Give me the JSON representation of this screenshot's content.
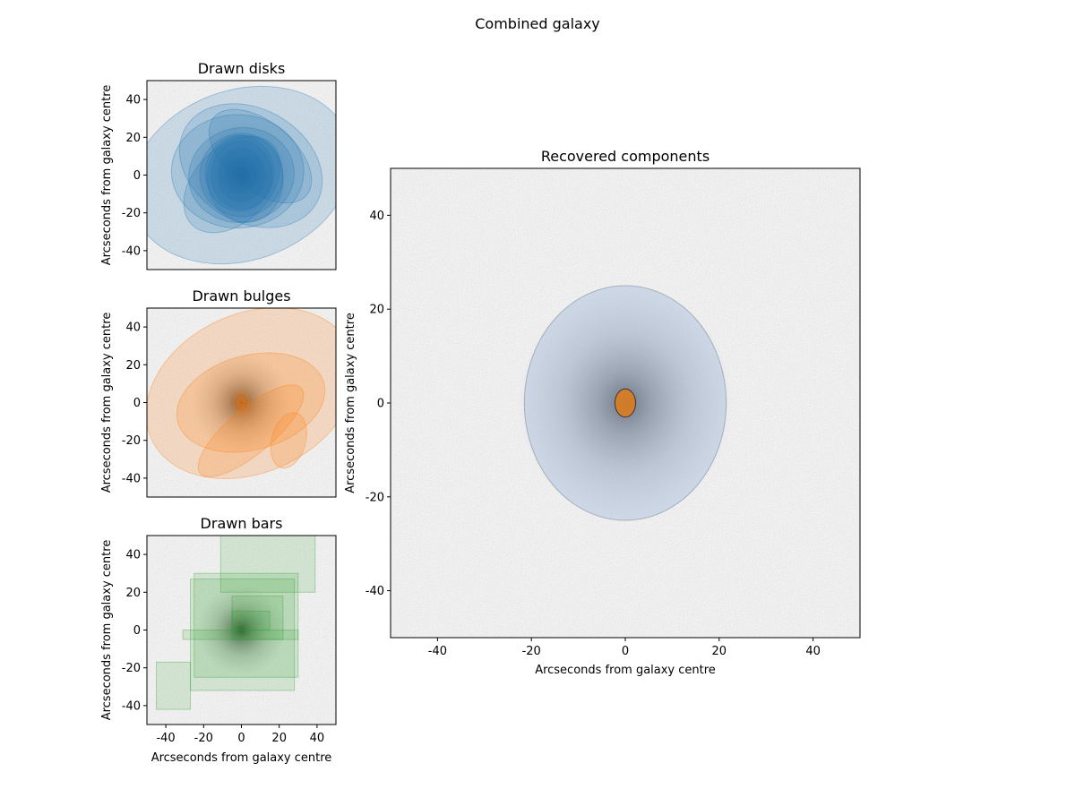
{
  "figure": {
    "suptitle": "Combined galaxy"
  },
  "colors": {
    "disk": "#1f77b4",
    "bulge": "#ff7f0e",
    "bar": "#2ca02c",
    "recovered_disk": "#a6bddb",
    "recovered_bulge": "#e07b1a",
    "background": "#d4d4d4"
  },
  "chart_data": [
    {
      "id": "drawn-disks",
      "type": "image-overlay",
      "title": "Drawn disks",
      "xlabel": "",
      "ylabel": "Arcseconds from galaxy centre",
      "xlim": [
        -50,
        50
      ],
      "ylim": [
        -50,
        50
      ],
      "xticks": [],
      "yticks": [
        40,
        20,
        0,
        -20,
        -40
      ],
      "ytick_labels": [
        "40",
        "20",
        "0",
        "-20",
        "-40"
      ],
      "shape": "ellipse",
      "components": [
        {
          "cx": 0,
          "cy": 0,
          "rx": 60,
          "ry": 45,
          "angle": 20
        },
        {
          "cx": 5,
          "cy": 5,
          "rx": 40,
          "ry": 30,
          "angle": -30
        },
        {
          "cx": -2,
          "cy": 2,
          "rx": 35,
          "ry": 30,
          "angle": 0
        },
        {
          "cx": 0,
          "cy": 0,
          "rx": 28,
          "ry": 25,
          "angle": 10
        },
        {
          "cx": 0,
          "cy": 0,
          "rx": 22,
          "ry": 22,
          "angle": 0
        },
        {
          "cx": 2,
          "cy": -2,
          "rx": 20,
          "ry": 23,
          "angle": 5
        },
        {
          "cx": -1,
          "cy": 1,
          "rx": 18,
          "ry": 20,
          "angle": 0
        },
        {
          "cx": 0,
          "cy": 0,
          "rx": 16,
          "ry": 18,
          "angle": 0
        },
        {
          "cx": 0,
          "cy": 0,
          "rx": 12,
          "ry": 14,
          "angle": 0
        },
        {
          "cx": 0,
          "cy": 0,
          "rx": 8,
          "ry": 9,
          "angle": 0
        },
        {
          "cx": 10,
          "cy": 10,
          "rx": 32,
          "ry": 18,
          "angle": -40
        },
        {
          "cx": -5,
          "cy": -5,
          "rx": 30,
          "ry": 20,
          "angle": 45
        }
      ]
    },
    {
      "id": "drawn-bulges",
      "type": "image-overlay",
      "title": "Drawn bulges",
      "xlabel": "",
      "ylabel": "Arcseconds from galaxy centre",
      "xlim": [
        -50,
        50
      ],
      "ylim": [
        -50,
        50
      ],
      "xticks": [],
      "yticks": [
        40,
        20,
        0,
        -20,
        -40
      ],
      "ytick_labels": [
        "40",
        "20",
        "0",
        "-20",
        "-40"
      ],
      "shape": "ellipse",
      "components": [
        {
          "cx": 5,
          "cy": 5,
          "rx": 58,
          "ry": 42,
          "angle": 25
        },
        {
          "cx": 5,
          "cy": 0,
          "rx": 40,
          "ry": 25,
          "angle": 15
        },
        {
          "cx": 5,
          "cy": -15,
          "rx": 35,
          "ry": 12,
          "angle": 40
        },
        {
          "cx": 25,
          "cy": -20,
          "rx": 15,
          "ry": 9,
          "angle": 75
        },
        {
          "cx": 0,
          "cy": 0,
          "rx": 4,
          "ry": 6,
          "angle": 0
        },
        {
          "cx": 0,
          "cy": 0,
          "rx": 2.5,
          "ry": 3,
          "angle": 0
        },
        {
          "cx": 0,
          "cy": 0,
          "rx": 1.5,
          "ry": 1.8,
          "angle": 0
        }
      ]
    },
    {
      "id": "drawn-bars",
      "type": "image-overlay",
      "title": "Drawn bars",
      "xlabel": "Arcseconds from galaxy centre",
      "ylabel": "Arcseconds from galaxy centre",
      "xlim": [
        -50,
        50
      ],
      "ylim": [
        -50,
        50
      ],
      "xticks": [
        -40,
        -20,
        0,
        20,
        40
      ],
      "xtick_labels": [
        "-40",
        "-20",
        "0",
        "20",
        "40"
      ],
      "yticks": [
        40,
        20,
        0,
        -20,
        -40
      ],
      "ytick_labels": [
        "40",
        "20",
        "0",
        "-20",
        "-40"
      ],
      "shape": "rect",
      "components": [
        {
          "x0": -11,
          "x1": 39,
          "y0": 20,
          "y1": 50
        },
        {
          "x0": -25,
          "x1": 30,
          "y0": -25,
          "y1": 30
        },
        {
          "x0": -27,
          "x1": 28,
          "y0": -32,
          "y1": 27
        },
        {
          "x0": -5,
          "x1": 22,
          "y0": -5,
          "y1": 18
        },
        {
          "x0": -5,
          "x1": 15,
          "y0": 0,
          "y1": 10
        },
        {
          "x0": -31,
          "x1": 30,
          "y0": -5,
          "y1": 0
        },
        {
          "x0": -45,
          "x1": -27,
          "y0": -42,
          "y1": -17
        }
      ]
    },
    {
      "id": "recovered-components",
      "type": "image-overlay",
      "title": "Recovered components",
      "xlabel": "Arcseconds from galaxy centre",
      "ylabel": "Arcseconds from galaxy centre",
      "xlim": [
        -50,
        50
      ],
      "ylim": [
        -50,
        50
      ],
      "xticks": [
        -40,
        -20,
        0,
        20,
        40
      ],
      "xtick_labels": [
        "-40",
        "-20",
        "0",
        "20",
        "40"
      ],
      "yticks": [
        40,
        20,
        0,
        -20,
        -40
      ],
      "ytick_labels": [
        "40",
        "20",
        "0",
        "-20",
        "-40"
      ],
      "shape": "ellipse",
      "components": [
        {
          "name": "disk",
          "cx": 0,
          "cy": 0,
          "rx": 21.5,
          "ry": 25,
          "angle": 0
        },
        {
          "name": "bulge",
          "cx": 0,
          "cy": 0,
          "rx": 2.2,
          "ry": 3,
          "angle": 0
        }
      ]
    }
  ]
}
